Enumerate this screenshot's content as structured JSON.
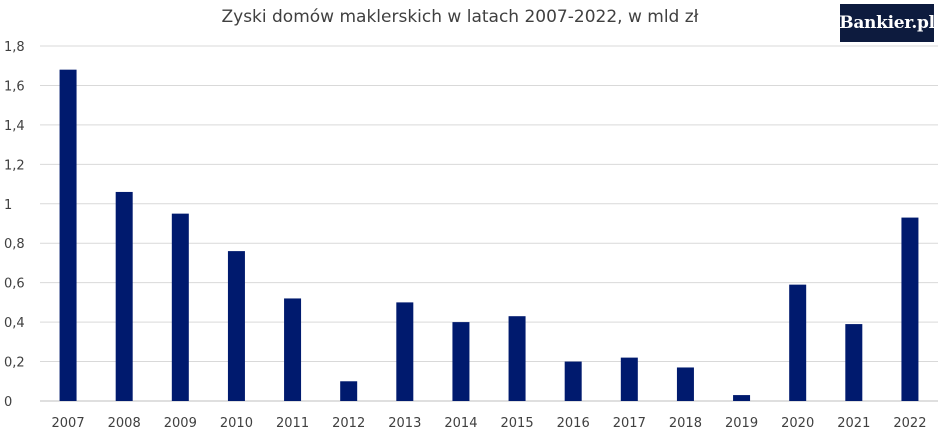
{
  "colors": {
    "bar": "#001a6e",
    "background": "#ffffff",
    "grid": "#d9d9d9",
    "logo_bg": "#0d1b3e"
  },
  "logo": {
    "text": "Bankier.pl"
  },
  "chart_data": {
    "type": "bar",
    "title": "Zyski domów maklerskich w  latach  2007-2022, w mld zł",
    "xlabel": "",
    "ylabel": "",
    "ylim": [
      0,
      1.8
    ],
    "yticks": [
      0,
      0.2,
      0.4,
      0.6,
      0.8,
      1,
      1.2,
      1.4,
      1.6,
      1.8
    ],
    "ytick_labels": [
      "0",
      "0,2",
      "0,4",
      "0,6",
      "0,8",
      "1",
      "1,2",
      "1,4",
      "1,6",
      "1,8"
    ],
    "categories": [
      "2007",
      "2008",
      "2009",
      "2010",
      "2011",
      "2012",
      "2013",
      "2014",
      "2015",
      "2016",
      "2017",
      "2018",
      "2019",
      "2020",
      "2021",
      "2022"
    ],
    "values": [
      1.68,
      1.06,
      0.95,
      0.76,
      0.52,
      0.1,
      0.5,
      0.4,
      0.43,
      0.2,
      0.22,
      0.17,
      0.03,
      0.59,
      0.39,
      0.93
    ],
    "grid": true,
    "legend": "none"
  }
}
